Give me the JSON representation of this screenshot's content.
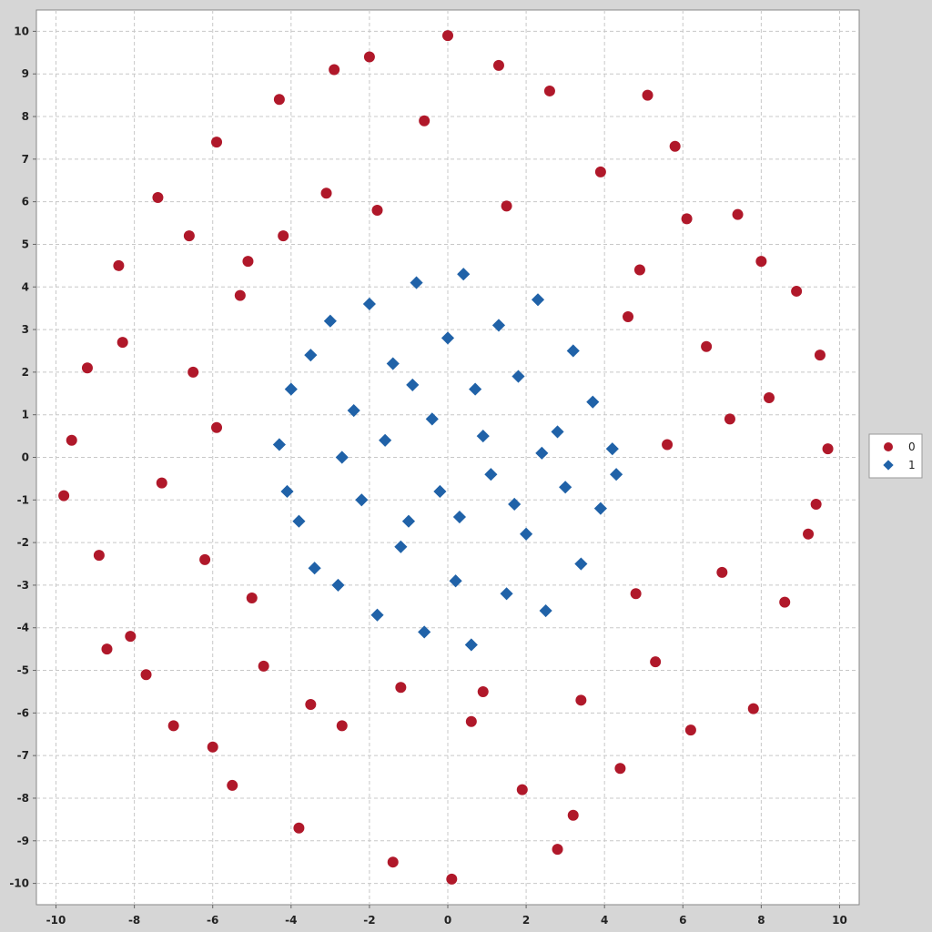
{
  "chart_data": {
    "type": "scatter",
    "title": "",
    "xlabel": "",
    "ylabel": "",
    "xlim": [
      -10.5,
      10.5
    ],
    "ylim": [
      -10.5,
      10.5
    ],
    "x_ticks": [
      -10,
      -8,
      -6,
      -4,
      -2,
      0,
      2,
      4,
      6,
      8,
      10
    ],
    "y_ticks": [
      -10,
      -9,
      -8,
      -7,
      -6,
      -5,
      -4,
      -3,
      -2,
      -1,
      0,
      1,
      2,
      3,
      4,
      5,
      6,
      7,
      8,
      9,
      10
    ],
    "grid": true,
    "legend_position": "right",
    "series": [
      {
        "name": "0",
        "marker": "circle",
        "color": "#b0182a",
        "points": [
          [
            -9.6,
            0.4
          ],
          [
            -9.2,
            2.1
          ],
          [
            -8.9,
            -2.3
          ],
          [
            -8.4,
            4.5
          ],
          [
            -8.1,
            -4.2
          ],
          [
            -7.4,
            6.1
          ],
          [
            -7.0,
            -6.3
          ],
          [
            -6.5,
            2.0
          ],
          [
            -6.2,
            -2.4
          ],
          [
            -5.9,
            7.4
          ],
          [
            -5.5,
            -7.7
          ],
          [
            -5.1,
            4.6
          ],
          [
            -4.7,
            -4.9
          ],
          [
            -4.3,
            8.4
          ],
          [
            -3.8,
            -8.7
          ],
          [
            -3.1,
            6.2
          ],
          [
            -2.7,
            -6.3
          ],
          [
            -2.0,
            9.4
          ],
          [
            -1.4,
            -9.5
          ],
          [
            -0.6,
            7.9
          ],
          [
            0.0,
            9.9
          ],
          [
            0.1,
            -9.9
          ],
          [
            0.6,
            -6.2
          ],
          [
            1.3,
            9.2
          ],
          [
            1.9,
            -7.8
          ],
          [
            2.6,
            8.6
          ],
          [
            3.2,
            -8.4
          ],
          [
            3.9,
            6.7
          ],
          [
            4.4,
            -7.3
          ],
          [
            4.9,
            4.4
          ],
          [
            5.3,
            -4.8
          ],
          [
            5.8,
            7.3
          ],
          [
            6.2,
            -6.4
          ],
          [
            6.6,
            2.6
          ],
          [
            7.0,
            -2.7
          ],
          [
            7.4,
            5.7
          ],
          [
            7.8,
            -5.9
          ],
          [
            8.2,
            1.4
          ],
          [
            8.6,
            -3.4
          ],
          [
            8.9,
            3.9
          ],
          [
            9.2,
            -1.8
          ],
          [
            9.5,
            2.4
          ],
          [
            9.7,
            0.2
          ],
          [
            9.4,
            -1.1
          ],
          [
            -9.8,
            -0.9
          ],
          [
            -8.7,
            -4.5
          ],
          [
            -7.7,
            -5.1
          ],
          [
            -6.0,
            -6.8
          ],
          [
            5.1,
            8.5
          ],
          [
            6.1,
            5.6
          ],
          [
            -6.6,
            5.2
          ],
          [
            -5.3,
            3.8
          ],
          [
            -5.0,
            -3.3
          ],
          [
            3.4,
            -5.7
          ],
          [
            4.8,
            -3.2
          ],
          [
            4.6,
            3.3
          ],
          [
            -3.5,
            -5.8
          ],
          [
            -4.2,
            5.2
          ],
          [
            1.5,
            5.9
          ],
          [
            -1.8,
            5.8
          ],
          [
            0.9,
            -5.5
          ],
          [
            -1.2,
            -5.4
          ],
          [
            7.2,
            0.9
          ],
          [
            -7.3,
            -0.6
          ],
          [
            5.6,
            0.3
          ],
          [
            -5.9,
            0.7
          ],
          [
            2.8,
            -9.2
          ],
          [
            -2.9,
            9.1
          ],
          [
            8.0,
            4.6
          ],
          [
            -8.3,
            2.7
          ]
        ]
      },
      {
        "name": "1",
        "marker": "diamond",
        "color": "#2062a8",
        "points": [
          [
            -4.3,
            0.3
          ],
          [
            -4.0,
            1.6
          ],
          [
            -3.8,
            -1.5
          ],
          [
            -3.5,
            2.4
          ],
          [
            -3.4,
            -2.6
          ],
          [
            -3.0,
            3.2
          ],
          [
            -2.8,
            -3.0
          ],
          [
            -2.4,
            1.1
          ],
          [
            -2.2,
            -1.0
          ],
          [
            -2.0,
            3.6
          ],
          [
            -1.8,
            -3.7
          ],
          [
            -1.4,
            2.2
          ],
          [
            -1.2,
            -2.1
          ],
          [
            -0.8,
            4.1
          ],
          [
            -0.6,
            -4.1
          ],
          [
            -0.4,
            0.9
          ],
          [
            -0.2,
            -0.8
          ],
          [
            0.0,
            2.8
          ],
          [
            0.2,
            -2.9
          ],
          [
            0.4,
            4.3
          ],
          [
            0.6,
            -4.4
          ],
          [
            0.9,
            0.5
          ],
          [
            1.1,
            -0.4
          ],
          [
            1.3,
            3.1
          ],
          [
            1.5,
            -3.2
          ],
          [
            1.8,
            1.9
          ],
          [
            2.0,
            -1.8
          ],
          [
            2.3,
            3.7
          ],
          [
            2.5,
            -3.6
          ],
          [
            2.8,
            0.6
          ],
          [
            3.0,
            -0.7
          ],
          [
            3.2,
            2.5
          ],
          [
            3.4,
            -2.5
          ],
          [
            3.7,
            1.3
          ],
          [
            3.9,
            -1.2
          ],
          [
            4.2,
            0.2
          ],
          [
            4.3,
            -0.4
          ],
          [
            -4.1,
            -0.8
          ],
          [
            -2.7,
            0.0
          ],
          [
            -1.6,
            0.4
          ],
          [
            -0.9,
            1.7
          ],
          [
            0.7,
            1.6
          ],
          [
            1.7,
            -1.1
          ],
          [
            2.4,
            0.1
          ],
          [
            -1.0,
            -1.5
          ],
          [
            0.3,
            -1.4
          ]
        ]
      }
    ]
  }
}
